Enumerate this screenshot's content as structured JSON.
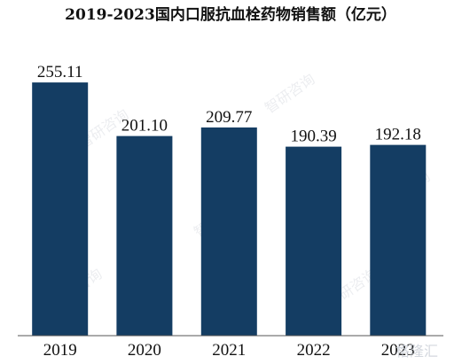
{
  "chart_data": {
    "type": "bar",
    "title": "2019-2023国内口服抗血栓药物销售额（亿元）",
    "categories": [
      "2019",
      "2020",
      "2021",
      "2022",
      "2023"
    ],
    "values": [
      255.11,
      201.1,
      209.77,
      190.39,
      192.18
    ],
    "value_labels": [
      "255.11",
      "201.10",
      "209.77",
      "190.39",
      "192.18"
    ],
    "ylim": [
      0,
      290
    ],
    "grid": false,
    "legend": "none",
    "bar_color": "#143d63"
  },
  "watermark": {
    "corner_text": "格隆汇",
    "logo_text": "智研咨询"
  }
}
